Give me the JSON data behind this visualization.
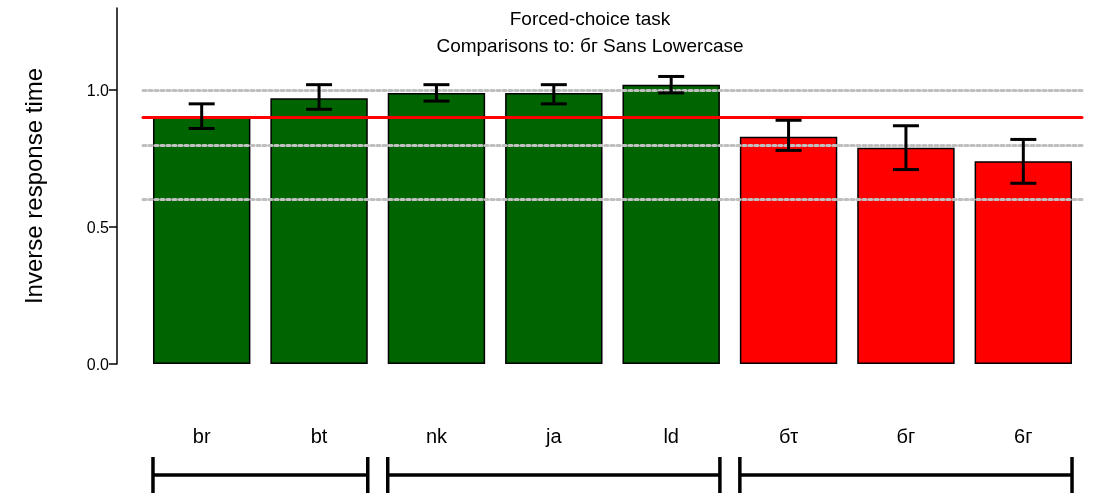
{
  "chart_data": {
    "type": "bar",
    "title": "Forced-choice task",
    "subtitle": "Comparisons to: бг Sans Lowercase",
    "ylabel": "Inverse response time",
    "categories": [
      "br",
      "bt",
      "nk",
      "ja",
      "ld",
      "бτ",
      "бг",
      "6г"
    ],
    "values": [
      0.9,
      0.97,
      0.99,
      0.99,
      1.02,
      0.83,
      0.79,
      0.74
    ],
    "errors": [
      [
        0.86,
        0.95
      ],
      [
        0.93,
        1.02
      ],
      [
        0.96,
        1.02
      ],
      [
        0.95,
        1.02
      ],
      [
        0.99,
        1.05
      ],
      [
        0.78,
        0.89
      ],
      [
        0.71,
        0.87
      ],
      [
        0.66,
        0.82
      ]
    ],
    "colors": [
      "#006400",
      "#006400",
      "#006400",
      "#006400",
      "#006400",
      "#ff0000",
      "#ff0000",
      "#ff0000"
    ],
    "ylim": [
      0,
      1.3
    ],
    "yticks": [
      {
        "value": 0,
        "label": "0.0"
      },
      {
        "value": 0.5,
        "label": "0.5"
      },
      {
        "value": 1,
        "label": "1.0"
      }
    ],
    "ref_lines": [
      {
        "axis": "y",
        "value": 0.6,
        "color": "#bfbfbf",
        "line_style": "dotted"
      },
      {
        "axis": "y",
        "value": 0.8,
        "color": "#bfbfbf",
        "line_style": "dotted"
      },
      {
        "axis": "y",
        "value": 1.0,
        "color": "#bfbfbf",
        "line_style": "dotted"
      },
      {
        "axis": "y",
        "value": 0.9,
        "color": "#ff0000",
        "line_style": "solid"
      }
    ],
    "grid": false
  }
}
